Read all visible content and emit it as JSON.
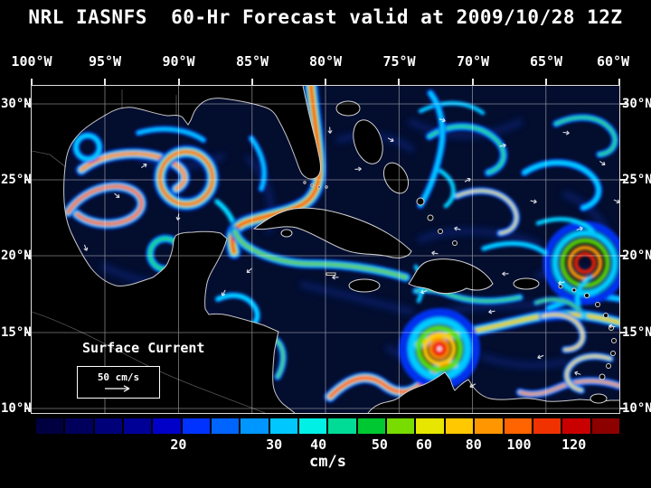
{
  "title": "NRL IASNFS  60-Hr Forecast valid at 2009/10/28 12Z",
  "axes": {
    "lon_labels": [
      "100°W",
      "95°W",
      "90°W",
      "85°W",
      "80°W",
      "75°W",
      "70°W",
      "65°W",
      "60°W"
    ],
    "lat_labels_left": [
      "30°N",
      "25°N",
      "20°N",
      "15°N",
      "10°N"
    ],
    "lat_labels_right": [
      "30°N",
      "25°N",
      "20°N",
      "15°N",
      "10°N"
    ]
  },
  "legend": {
    "title": "Surface Current",
    "scale_label": "50 cm/s"
  },
  "colorbar": {
    "unit": "cm/s",
    "tick_labels": [
      {
        "text": "20",
        "pos": 24.4
      },
      {
        "text": "30",
        "pos": 40.8
      },
      {
        "text": "40",
        "pos": 48.4
      },
      {
        "text": "50",
        "pos": 58.9
      },
      {
        "text": "60",
        "pos": 66.5
      },
      {
        "text": "80",
        "pos": 75.0
      },
      {
        "text": "100",
        "pos": 82.8
      },
      {
        "text": "120",
        "pos": 92.2
      }
    ],
    "segments": [
      "#000040",
      "#00005c",
      "#000078",
      "#000096",
      "#0000c8",
      "#0032ff",
      "#0064ff",
      "#0096ff",
      "#00c8ff",
      "#00f0e6",
      "#00dc96",
      "#00c832",
      "#78dc00",
      "#e6e600",
      "#ffc800",
      "#ff9600",
      "#ff6400",
      "#f03200",
      "#c80000",
      "#8c0000"
    ]
  },
  "colors": {
    "background": "#000000",
    "ocean": "#030d2e",
    "land": "#000000",
    "coastline": "#d4d4d4",
    "grid": "#ffffff",
    "text": "#ffffff"
  }
}
